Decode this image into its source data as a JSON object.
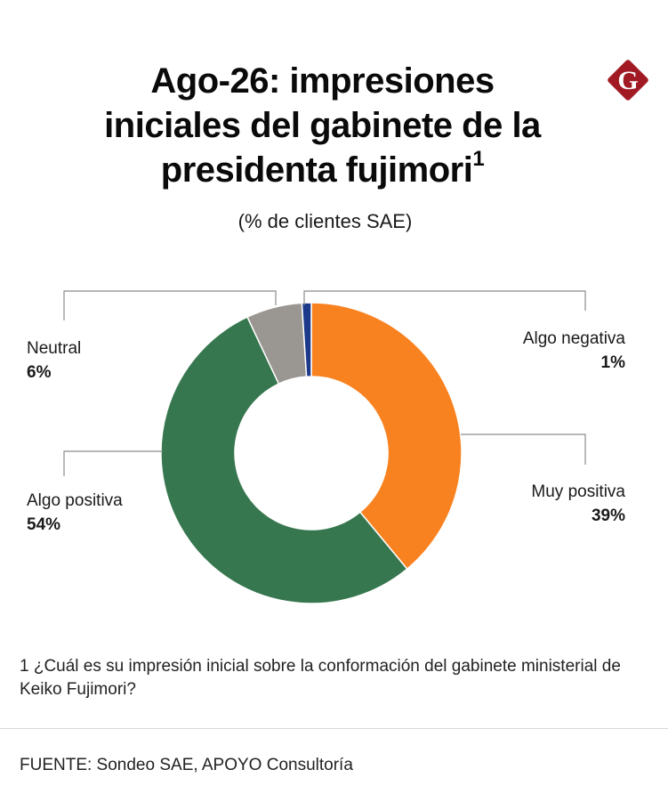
{
  "chart_data": {
    "type": "pie",
    "title": "Ago-26: impresiones iniciales del gabinete de la presidenta fujimori",
    "title_superscript": "1",
    "subtitle": "(% de clientes SAE)",
    "slices": [
      {
        "label": "Muy positiva",
        "value": 39,
        "value_label": "39%",
        "color": "#f98220"
      },
      {
        "label": "Algo positiva",
        "value": 54,
        "value_label": "54%",
        "color": "#37774f"
      },
      {
        "label": "Neutral",
        "value": 6,
        "value_label": "6%",
        "color": "#9a9691"
      },
      {
        "label": "Algo negativa",
        "value": 1,
        "value_label": "1%",
        "color": "#1d3a8a"
      }
    ],
    "donut": true,
    "legend": "callouts"
  },
  "logo": {
    "letter": "G",
    "color": "#a11a23"
  },
  "footnote": "1 ¿Cuál es su impresión inicial sobre la conformación del gabinete ministerial de Keiko Fujimori?",
  "source": "FUENTE: Sondeo SAE, APOYO Consultoría"
}
